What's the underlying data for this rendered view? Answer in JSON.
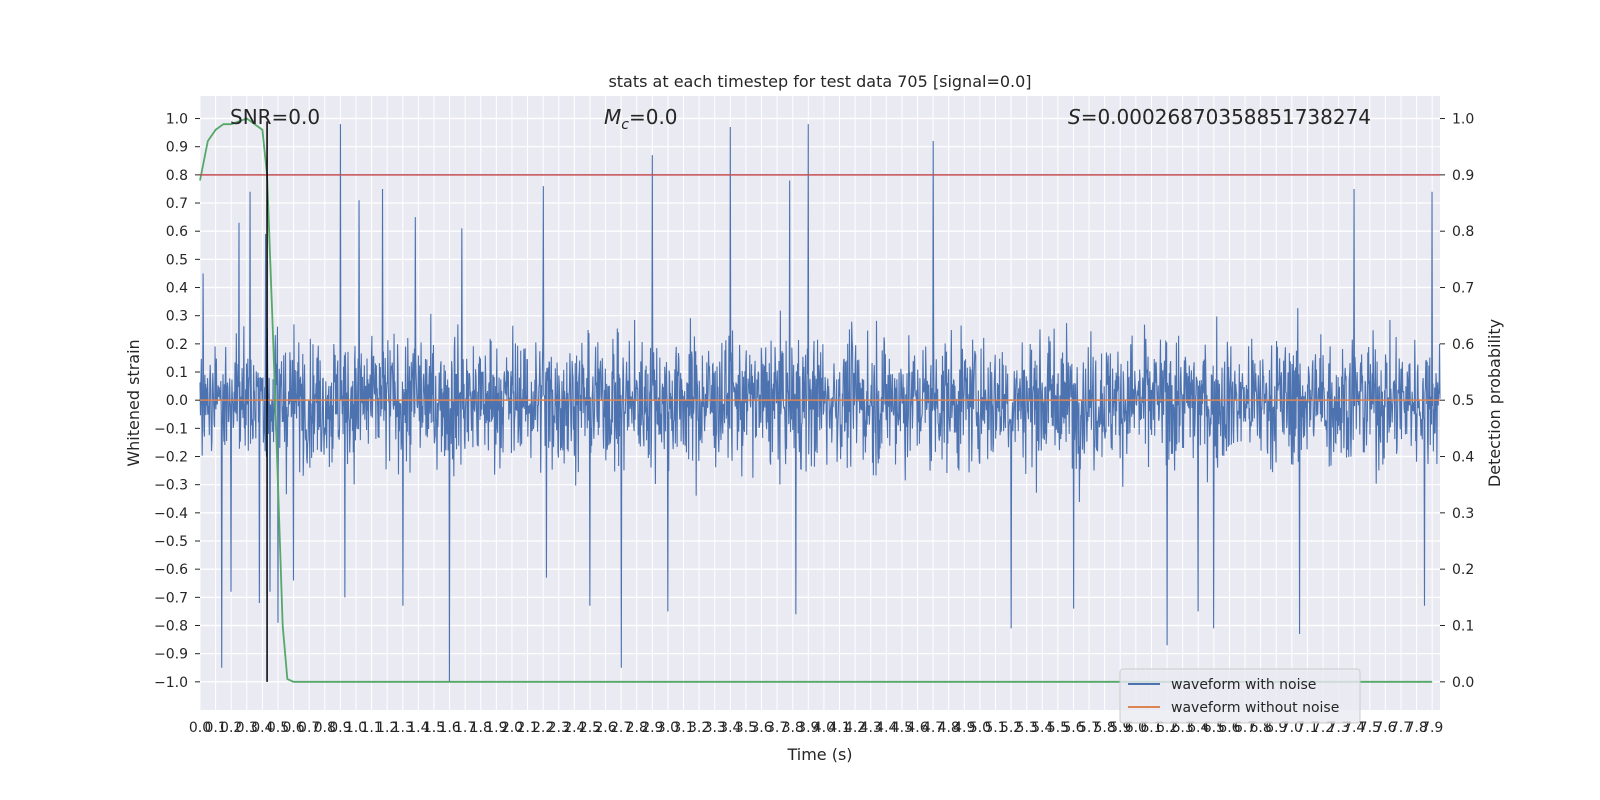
{
  "chart_data": {
    "type": "line",
    "title": "stats at each timestep for test data 705 [signal=0.0]",
    "xlabel": "Time (s)",
    "ylabel_left": "Whitened strain",
    "ylabel_right": "Detection probability",
    "xlim": [
      0.0,
      7.95
    ],
    "ylim_left": [
      -1.1,
      1.08
    ],
    "ylim_right": [
      -0.05,
      1.04
    ],
    "x_ticks": [
      "0.0",
      "0.1",
      "0.2",
      "0.3",
      "0.4",
      "0.5",
      "0.6",
      "0.7",
      "0.8",
      "0.9",
      "1.0",
      "1.1",
      "1.2",
      "1.3",
      "1.4",
      "1.5",
      "1.6",
      "1.7",
      "1.8",
      "1.9",
      "2.0",
      "2.1",
      "2.2",
      "2.3",
      "2.4",
      "2.5",
      "2.6",
      "2.7",
      "2.8",
      "2.9",
      "3.0",
      "3.1",
      "3.2",
      "3.3",
      "3.4",
      "3.5",
      "3.6",
      "3.7",
      "3.8",
      "3.9",
      "4.0",
      "4.1",
      "4.2",
      "4.3",
      "4.4",
      "4.5",
      "4.6",
      "4.7",
      "4.8",
      "4.9",
      "5.0",
      "5.1",
      "5.2",
      "5.3",
      "5.4",
      "5.5",
      "5.6",
      "5.7",
      "5.8",
      "5.9",
      "6.0",
      "6.1",
      "6.2",
      "6.3",
      "6.4",
      "6.5",
      "6.6",
      "6.7",
      "6.8",
      "6.9",
      "7.0",
      "7.1",
      "7.2",
      "7.3",
      "7.4",
      "7.5",
      "7.6",
      "7.7",
      "7.8",
      "7.9"
    ],
    "y_ticks_left": [
      "1.0",
      "0.9",
      "0.8",
      "0.7",
      "0.6",
      "0.5",
      "0.4",
      "0.3",
      "0.2",
      "0.1",
      "0.0",
      "−0.1",
      "−0.2",
      "−0.3",
      "−0.4",
      "−0.5",
      "−0.6",
      "−0.7",
      "−0.8",
      "−0.9",
      "−1.0"
    ],
    "y_ticks_right": [
      "1.0",
      "0.9",
      "0.8",
      "0.7",
      "0.6",
      "0.5",
      "0.4",
      "0.3",
      "0.2",
      "0.1",
      "0.0"
    ],
    "annotations": {
      "snr": "SNR=0.0",
      "mc_symbol": "M",
      "mc_sub": "c",
      "mc_value": "=0.0",
      "s_symbol": "S",
      "s_value": "=0.00026870358851738274"
    },
    "series": [
      {
        "name": "waveform with noise",
        "color": "#4c72b0",
        "axis": "left",
        "envelope": "dense noise, typical amplitude about ±0.2–0.4",
        "peaks": [
          [
            0.02,
            0.45
          ],
          [
            0.14,
            -0.95
          ],
          [
            0.2,
            -0.68
          ],
          [
            0.25,
            0.63
          ],
          [
            0.32,
            0.74
          ],
          [
            0.38,
            -0.72
          ],
          [
            0.42,
            0.59
          ],
          [
            0.45,
            -0.68
          ],
          [
            0.5,
            -0.79
          ],
          [
            0.6,
            -0.64
          ],
          [
            0.9,
            0.98
          ],
          [
            0.93,
            -0.7
          ],
          [
            1.02,
            0.71
          ],
          [
            1.17,
            0.75
          ],
          [
            1.3,
            -0.73
          ],
          [
            1.38,
            0.65
          ],
          [
            1.6,
            -1.0
          ],
          [
            1.68,
            0.61
          ],
          [
            2.2,
            0.76
          ],
          [
            2.22,
            -0.63
          ],
          [
            2.5,
            -0.73
          ],
          [
            2.7,
            -0.95
          ],
          [
            2.9,
            0.87
          ],
          [
            3.0,
            -0.75
          ],
          [
            3.4,
            0.97
          ],
          [
            3.78,
            0.78
          ],
          [
            3.9,
            0.98
          ],
          [
            3.82,
            -0.76
          ],
          [
            4.7,
            0.92
          ],
          [
            5.2,
            -0.81
          ],
          [
            5.6,
            -0.74
          ],
          [
            6.2,
            -0.87
          ],
          [
            6.4,
            -0.75
          ],
          [
            6.5,
            -0.81
          ],
          [
            7.05,
            -0.83
          ],
          [
            7.4,
            0.75
          ],
          [
            7.85,
            -0.73
          ],
          [
            7.9,
            0.74
          ]
        ]
      },
      {
        "name": "waveform without noise",
        "color": "#dd8452",
        "axis": "left",
        "x": [
          0.0,
          7.95
        ],
        "y": [
          0.0,
          0.0
        ]
      },
      {
        "name": "detection probability",
        "color": "#55a868",
        "axis": "right",
        "x": [
          0.0,
          0.05,
          0.1,
          0.15,
          0.2,
          0.25,
          0.3,
          0.35,
          0.4,
          0.43,
          0.47,
          0.5,
          0.53,
          0.56,
          0.6,
          0.65,
          7.9
        ],
        "y": [
          0.89,
          0.96,
          0.98,
          0.99,
          0.99,
          0.995,
          1.0,
          0.99,
          0.98,
          0.9,
          0.6,
          0.35,
          0.1,
          0.005,
          0.0,
          0.0,
          0.0
        ]
      },
      {
        "name": "threshold",
        "color": "#c44e52",
        "axis": "right",
        "x": [
          0.0,
          7.95
        ],
        "y": [
          0.9,
          0.9
        ]
      },
      {
        "name": "marker",
        "color": "#000000",
        "axis": "left",
        "x": [
          0.43,
          0.43
        ],
        "y": [
          -1.0,
          0.99
        ]
      }
    ],
    "legend": {
      "placement": "lower-right",
      "entries": [
        {
          "label": "waveform with noise",
          "color": "#4c72b0"
        },
        {
          "label": "waveform without noise",
          "color": "#dd8452"
        }
      ]
    },
    "grid": true,
    "style": {
      "plot_bg": "#eaeaf2",
      "grid_color": "#ffffff",
      "text_color": "#262626"
    }
  }
}
